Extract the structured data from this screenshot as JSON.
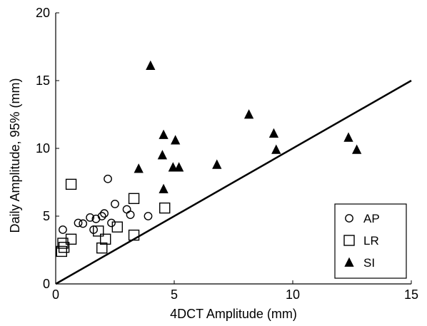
{
  "chart_data": {
    "type": "scatter",
    "xlabel": "4DCT Amplitude (mm)",
    "ylabel": "Daily Amplitude, 95% (mm)",
    "xlim": [
      0,
      15
    ],
    "ylim": [
      0,
      20
    ],
    "xticks": [
      0,
      5,
      10,
      15
    ],
    "yticks": [
      0,
      5,
      10,
      15,
      20
    ],
    "grid": false,
    "legend_position": "bottom-right",
    "reference_line": {
      "x": [
        0,
        15
      ],
      "y": [
        0,
        15
      ]
    },
    "series": [
      {
        "name": "AP",
        "marker": "circle-open",
        "points": [
          [
            0.3,
            4.0
          ],
          [
            0.95,
            4.5
          ],
          [
            1.15,
            4.45
          ],
          [
            1.45,
            4.9
          ],
          [
            1.6,
            4.0
          ],
          [
            1.7,
            4.8
          ],
          [
            1.95,
            5.0
          ],
          [
            2.05,
            5.2
          ],
          [
            2.2,
            7.75
          ],
          [
            2.35,
            4.5
          ],
          [
            2.5,
            5.9
          ],
          [
            3.0,
            5.5
          ],
          [
            3.15,
            5.1
          ],
          [
            3.9,
            5.0
          ]
        ]
      },
      {
        "name": "LR",
        "marker": "square-open",
        "points": [
          [
            0.25,
            2.4
          ],
          [
            0.3,
            3.0
          ],
          [
            0.35,
            2.7
          ],
          [
            0.65,
            3.3
          ],
          [
            0.65,
            7.35
          ],
          [
            1.8,
            3.9
          ],
          [
            1.95,
            2.65
          ],
          [
            2.1,
            3.3
          ],
          [
            2.6,
            4.2
          ],
          [
            3.3,
            6.3
          ],
          [
            3.3,
            3.6
          ],
          [
            4.6,
            5.6
          ]
        ]
      },
      {
        "name": "SI",
        "marker": "triangle-filled",
        "points": [
          [
            3.5,
            8.5
          ],
          [
            4.0,
            16.1
          ],
          [
            4.5,
            9.5
          ],
          [
            4.55,
            11.0
          ],
          [
            4.55,
            7.0
          ],
          [
            4.95,
            8.6
          ],
          [
            5.05,
            10.6
          ],
          [
            5.2,
            8.6
          ],
          [
            6.8,
            8.8
          ],
          [
            8.15,
            12.5
          ],
          [
            9.2,
            11.1
          ],
          [
            9.3,
            9.9
          ],
          [
            12.35,
            10.8
          ],
          [
            12.7,
            9.9
          ]
        ]
      }
    ]
  }
}
